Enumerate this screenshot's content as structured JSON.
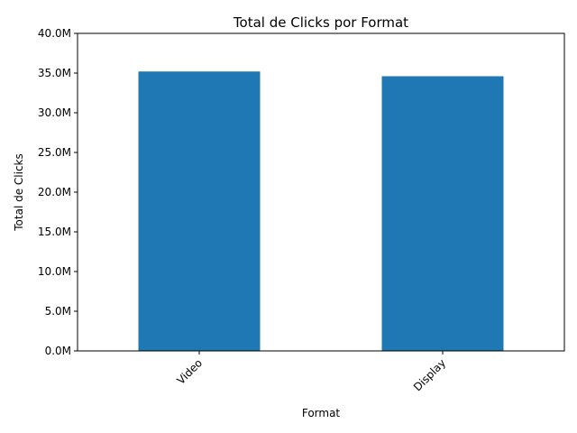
{
  "chart_data": {
    "type": "bar",
    "title": "Total de Clicks por Format",
    "xlabel": "Format",
    "ylabel": "Total de Clicks",
    "categories": [
      "Video",
      "Display"
    ],
    "values": [
      35200000,
      34600000
    ],
    "ylim": [
      0,
      40000000
    ],
    "yticks": [
      0,
      5000000,
      10000000,
      15000000,
      20000000,
      25000000,
      30000000,
      35000000,
      40000000
    ],
    "ytick_labels": [
      "0.0M",
      "5.0M",
      "10.0M",
      "15.0M",
      "20.0M",
      "25.0M",
      "30.0M",
      "35.0M",
      "40.0M"
    ],
    "bar_color": "#1f77b4",
    "grid": false,
    "legend": "none"
  }
}
